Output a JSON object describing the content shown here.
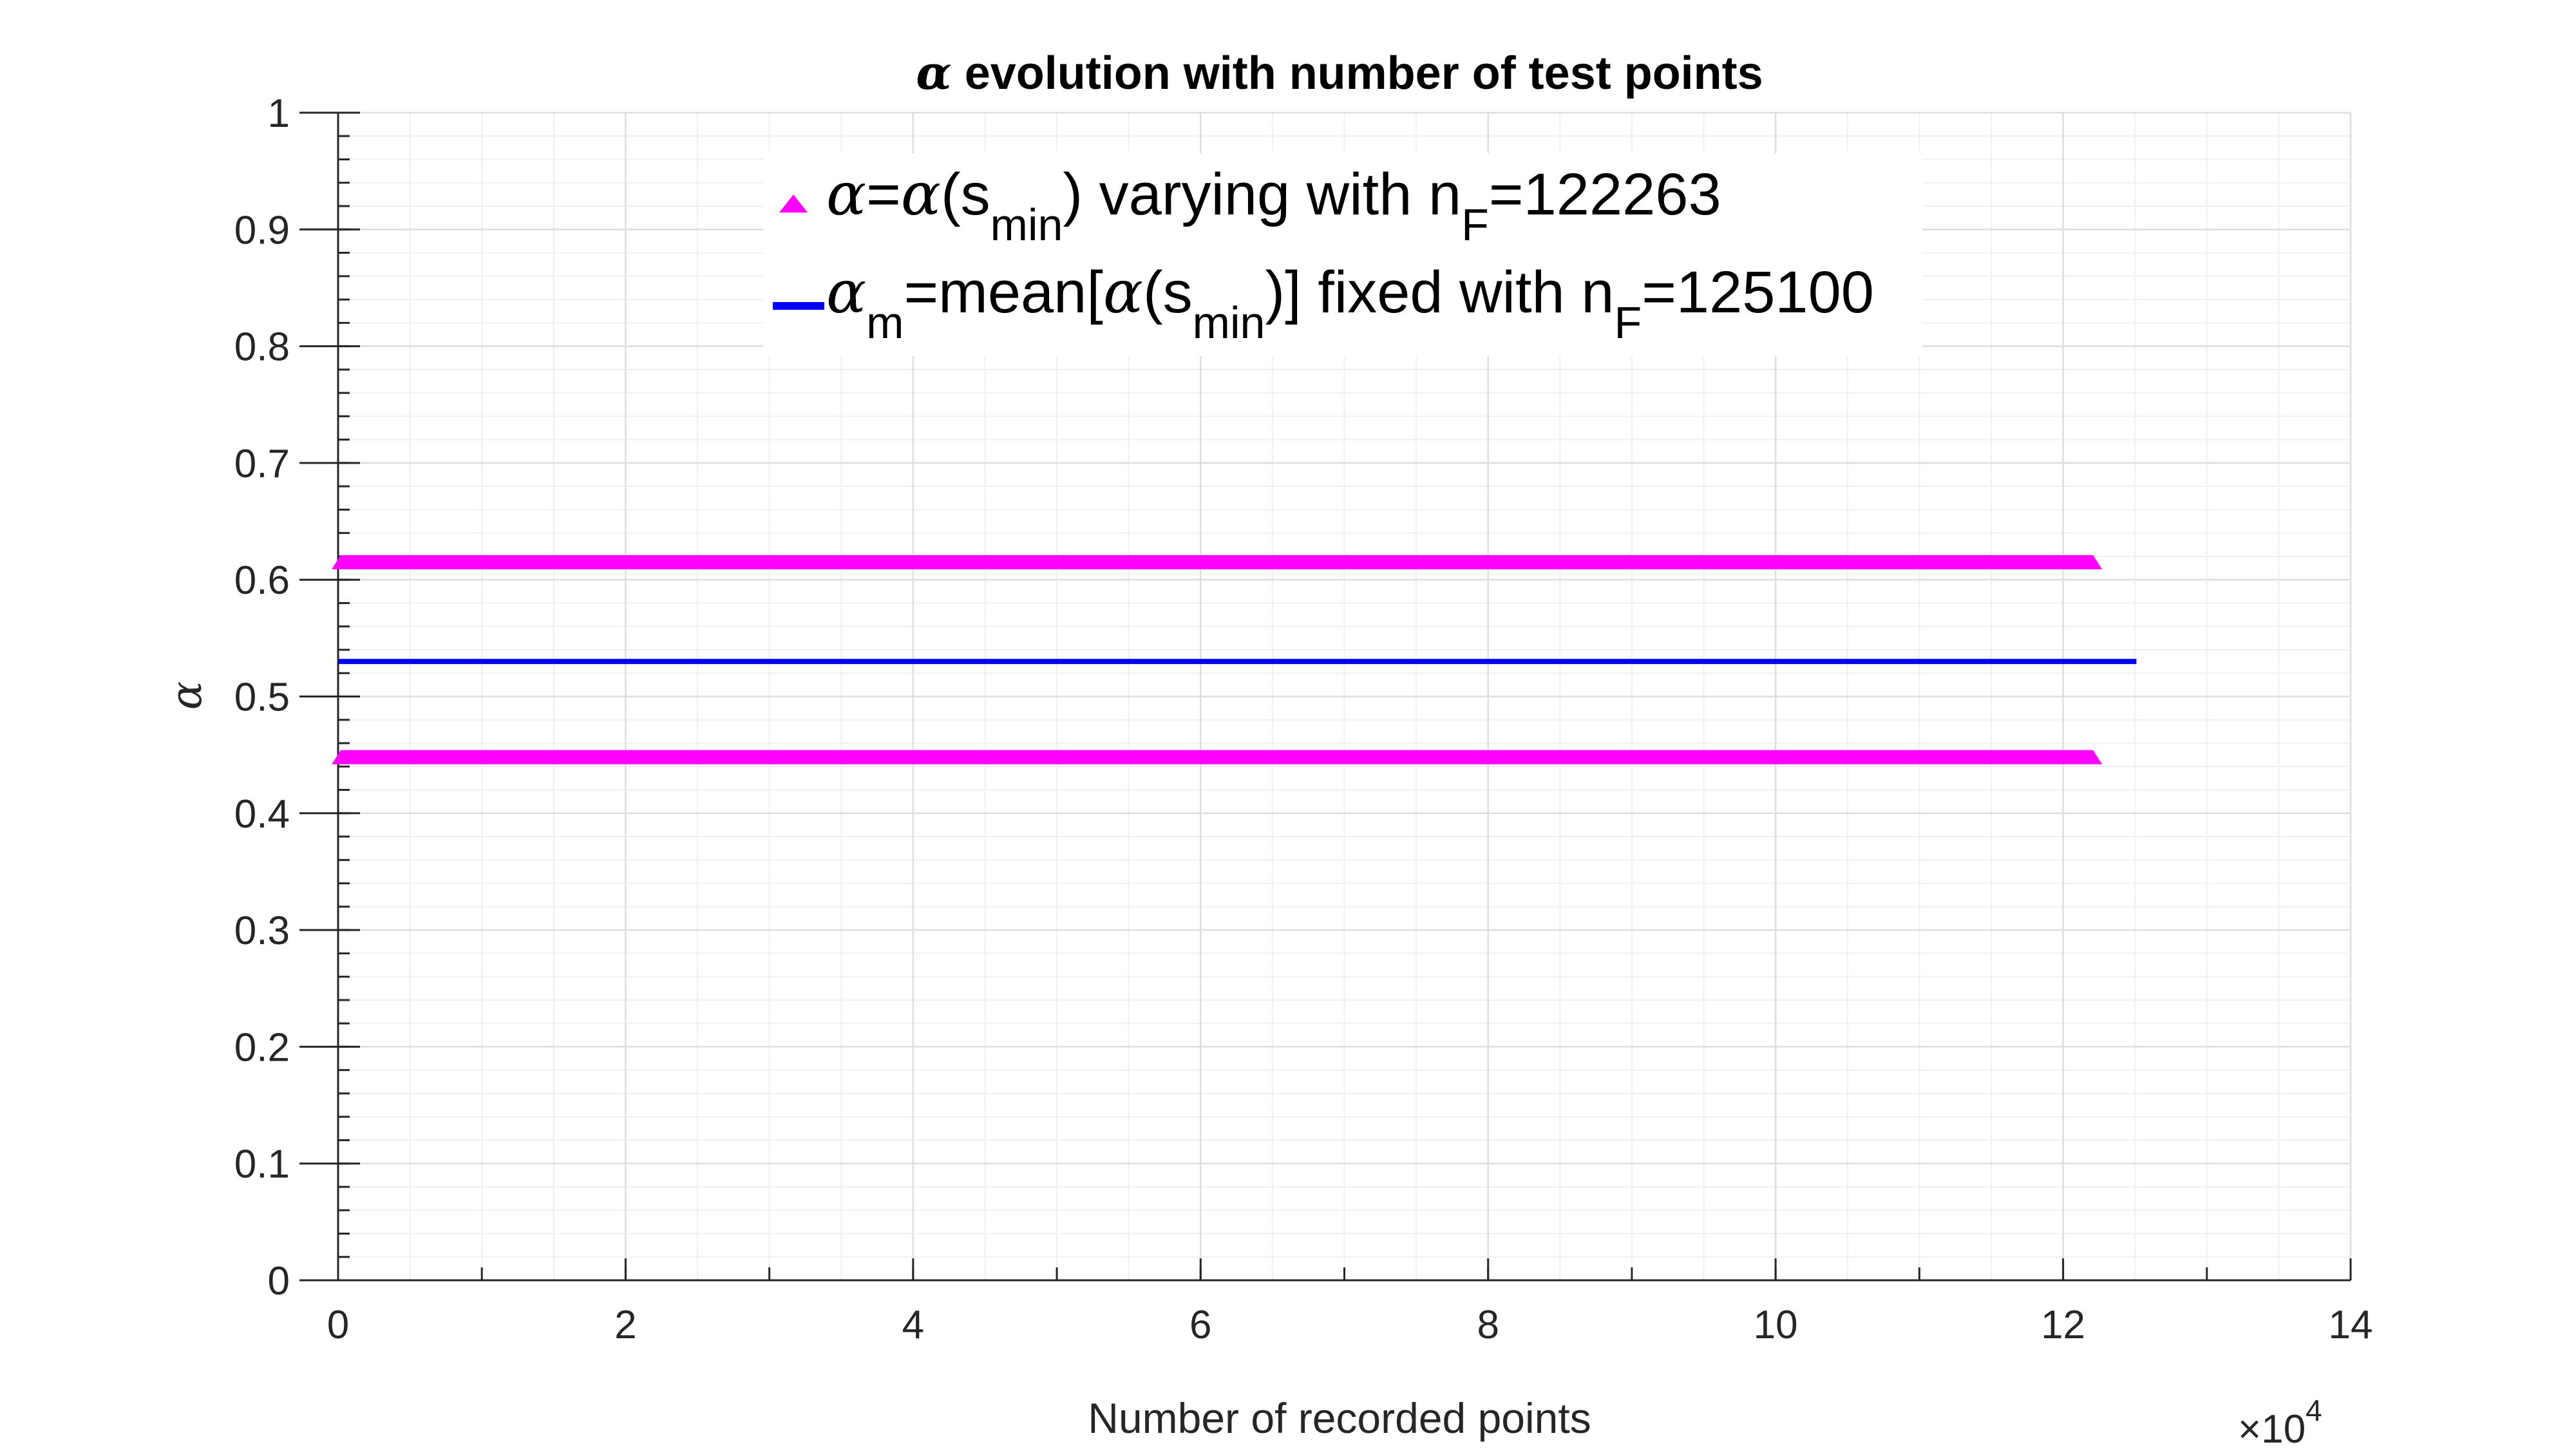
{
  "chart_data": {
    "type": "line",
    "title_symbol": "α",
    "title_text": " evolution with number of test points",
    "xlabel": "Number of recorded points",
    "ylabel": "α",
    "x_exponent_label": "×10",
    "x_exponent": "4",
    "xlim": [
      0,
      140000
    ],
    "ylim": [
      0,
      1
    ],
    "x_tick_values": [
      0,
      20000,
      40000,
      60000,
      80000,
      100000,
      120000,
      140000
    ],
    "x_tick_labels": [
      "0",
      "2",
      "4",
      "6",
      "8",
      "10",
      "12",
      "14"
    ],
    "y_tick_values": [
      0,
      0.1,
      0.2,
      0.3,
      0.4,
      0.5,
      0.6,
      0.7,
      0.8,
      0.9,
      1
    ],
    "y_tick_labels": [
      "0",
      "0.1",
      "0.2",
      "0.3",
      "0.4",
      "0.5",
      "0.6",
      "0.7",
      "0.8",
      "0.9",
      "1"
    ],
    "grid": true,
    "legend_placement": "top-center",
    "series": [
      {
        "marker": "triangle",
        "color": "#ff00ff",
        "x_range": [
          0,
          122263
        ],
        "y_bands": [
          0.615,
          0.448
        ],
        "legend": {
          "sym1": "α",
          "eq": "=",
          "sym2": "α",
          "open": "(s",
          "sub1": "min",
          "mid": ") varying with n",
          "sub2": "F",
          "end": "=122263"
        }
      },
      {
        "marker": "none",
        "color": "#0000ff",
        "x": [
          0,
          125100
        ],
        "y": [
          0.53,
          0.53
        ],
        "legend": {
          "sym1": "α",
          "sub0": "m",
          "eq": "=mean[",
          "sym2": "α",
          "open": "(s",
          "sub1": "min",
          "mid": ")] fixed with n",
          "sub2": "F",
          "end": "=125100"
        }
      }
    ]
  }
}
